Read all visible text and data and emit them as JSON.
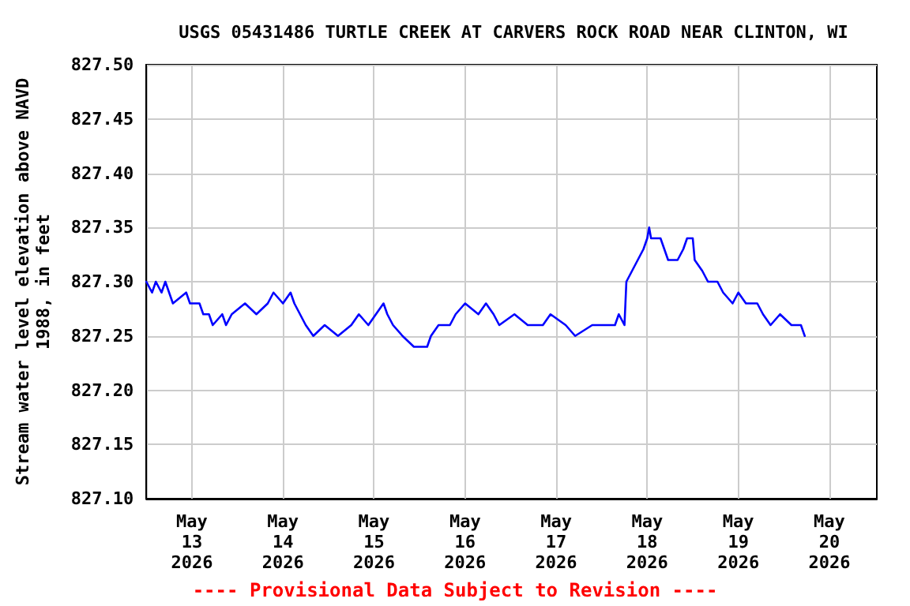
{
  "chart_data": {
    "type": "line",
    "title": "USGS 05431486 TURTLE CREEK AT CARVERS ROCK ROAD NEAR CLINTON, WI",
    "ylabel": "Stream water level elevation above NAVD\n1988, in feet",
    "annotations": [
      "---- Provisional Data Subject to Revision ----"
    ],
    "xlim": [
      "2026-05-12T12:00",
      "2026-05-20T12:30"
    ],
    "xticks": [
      {
        "value": "2026-05-13",
        "label": "May\n13\n2026"
      },
      {
        "value": "2026-05-14",
        "label": "May\n14\n2026"
      },
      {
        "value": "2026-05-15",
        "label": "May\n15\n2026"
      },
      {
        "value": "2026-05-16",
        "label": "May\n16\n2026"
      },
      {
        "value": "2026-05-17",
        "label": "May\n17\n2026"
      },
      {
        "value": "2026-05-18",
        "label": "May\n18\n2026"
      },
      {
        "value": "2026-05-19",
        "label": "May\n19\n2026"
      },
      {
        "value": "2026-05-20",
        "label": "May\n20\n2026"
      }
    ],
    "ylim": [
      827.1,
      827.5
    ],
    "yticks": [
      {
        "value": 827.1,
        "label": "827.10"
      },
      {
        "value": 827.15,
        "label": "827.15"
      },
      {
        "value": 827.2,
        "label": "827.20"
      },
      {
        "value": 827.25,
        "label": "827.25"
      },
      {
        "value": 827.3,
        "label": "827.30"
      },
      {
        "value": 827.35,
        "label": "827.35"
      },
      {
        "value": 827.4,
        "label": "827.40"
      },
      {
        "value": 827.45,
        "label": "827.45"
      },
      {
        "value": 827.5,
        "label": "827.50"
      }
    ],
    "grid": true,
    "marker": "none",
    "line_style": "solid",
    "x": [
      "2026-05-12T12:00",
      "2026-05-12T13:30",
      "2026-05-12T14:30",
      "2026-05-12T16:00",
      "2026-05-12T17:00",
      "2026-05-12T18:00",
      "2026-05-12T19:00",
      "2026-05-12T22:30",
      "2026-05-12T23:30",
      "2026-05-13T02:00",
      "2026-05-13T03:00",
      "2026-05-13T04:30",
      "2026-05-13T05:30",
      "2026-05-13T08:00",
      "2026-05-13T09:00",
      "2026-05-13T10:30",
      "2026-05-13T14:00",
      "2026-05-13T17:00",
      "2026-05-13T20:00",
      "2026-05-13T21:30",
      "2026-05-14T00:00",
      "2026-05-14T02:00",
      "2026-05-14T03:00",
      "2026-05-14T04:30",
      "2026-05-14T06:00",
      "2026-05-14T08:00",
      "2026-05-14T11:00",
      "2026-05-14T14:30",
      "2026-05-14T18:00",
      "2026-05-14T20:00",
      "2026-05-14T22:30",
      "2026-05-15T00:30",
      "2026-05-15T02:30",
      "2026-05-15T03:30",
      "2026-05-15T05:00",
      "2026-05-15T07:30",
      "2026-05-15T10:30",
      "2026-05-15T14:00",
      "2026-05-15T15:00",
      "2026-05-15T17:00",
      "2026-05-15T20:00",
      "2026-05-15T21:30",
      "2026-05-16T00:00",
      "2026-05-16T03:30",
      "2026-05-16T05:30",
      "2026-05-16T07:30",
      "2026-05-16T09:00",
      "2026-05-16T13:00",
      "2026-05-16T16:30",
      "2026-05-16T20:30",
      "2026-05-16T22:30",
      "2026-05-17T02:30",
      "2026-05-17T05:00",
      "2026-05-17T09:30",
      "2026-05-17T11:30",
      "2026-05-17T15:30",
      "2026-05-17T16:30",
      "2026-05-17T18:00",
      "2026-05-17T18:30",
      "2026-05-17T20:00",
      "2026-05-17T21:30",
      "2026-05-17T23:00",
      "2026-05-18T00:00",
      "2026-05-18T00:30",
      "2026-05-18T01:00",
      "2026-05-18T03:30",
      "2026-05-18T04:30",
      "2026-05-18T05:30",
      "2026-05-18T08:00",
      "2026-05-18T09:30",
      "2026-05-18T10:30",
      "2026-05-18T12:00",
      "2026-05-18T12:30",
      "2026-05-18T14:30",
      "2026-05-18T16:00",
      "2026-05-18T18:30",
      "2026-05-18T20:00",
      "2026-05-18T22:30",
      "2026-05-19T00:00",
      "2026-05-19T02:00",
      "2026-05-19T05:00",
      "2026-05-19T06:30",
      "2026-05-19T08:30",
      "2026-05-19T11:00",
      "2026-05-19T14:00",
      "2026-05-19T16:30",
      "2026-05-19T17:30"
    ],
    "series": [
      {
        "color": "#0000ff",
        "values": [
          827.3,
          827.29,
          827.3,
          827.29,
          827.3,
          827.29,
          827.28,
          827.29,
          827.28,
          827.28,
          827.27,
          827.27,
          827.26,
          827.27,
          827.26,
          827.27,
          827.28,
          827.27,
          827.28,
          827.29,
          827.28,
          827.29,
          827.28,
          827.27,
          827.26,
          827.25,
          827.26,
          827.25,
          827.26,
          827.27,
          827.26,
          827.27,
          827.28,
          827.27,
          827.26,
          827.25,
          827.24,
          827.24,
          827.25,
          827.26,
          827.26,
          827.27,
          827.28,
          827.27,
          827.28,
          827.27,
          827.26,
          827.27,
          827.26,
          827.26,
          827.27,
          827.26,
          827.25,
          827.26,
          827.26,
          827.26,
          827.27,
          827.26,
          827.3,
          827.31,
          827.32,
          827.33,
          827.34,
          827.35,
          827.34,
          827.34,
          827.33,
          827.32,
          827.32,
          827.33,
          827.34,
          827.34,
          827.32,
          827.31,
          827.3,
          827.3,
          827.29,
          827.28,
          827.29,
          827.28,
          827.28,
          827.27,
          827.26,
          827.27,
          827.26,
          827.26,
          827.25
        ]
      }
    ]
  }
}
